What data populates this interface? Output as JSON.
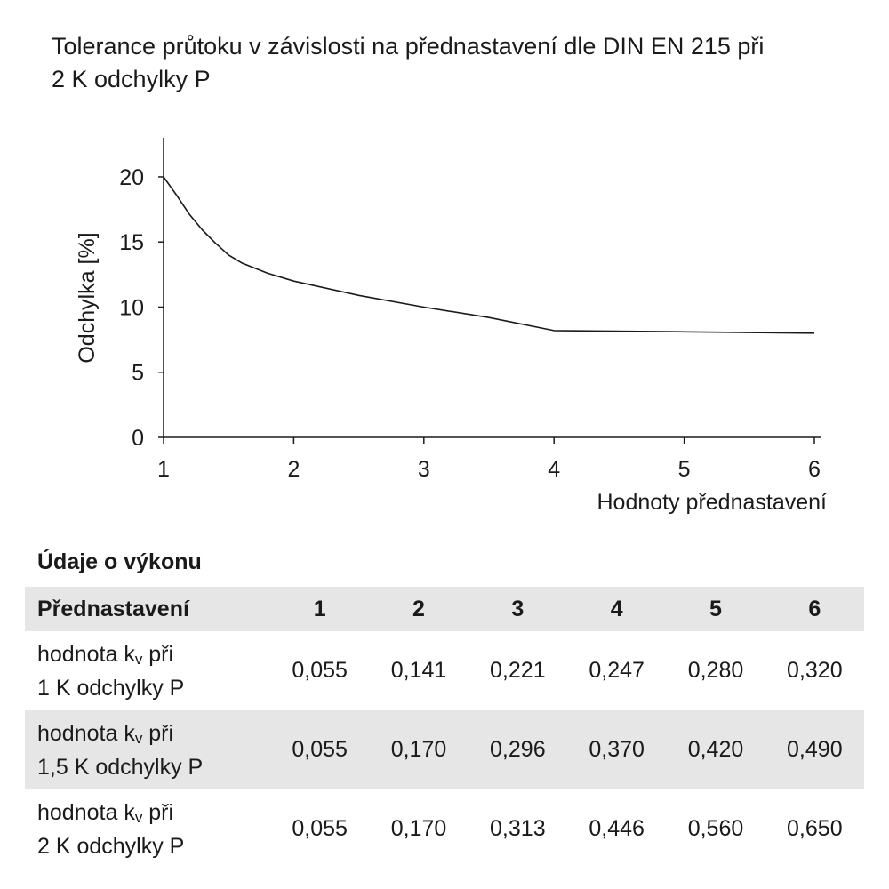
{
  "title": {
    "line1": "Tolerance průtoku v závislosti na přednastavení dle DIN EN 215 při",
    "line2": "2 K odchylky P"
  },
  "chart_data": {
    "type": "line",
    "xlabel": "Hodnoty přednastavení",
    "ylabel": "Odchylka [%]",
    "xlim": [
      1,
      6
    ],
    "ylim": [
      0,
      23
    ],
    "xticks": [
      1,
      2,
      3,
      4,
      5,
      6
    ],
    "yticks": [
      0,
      5,
      10,
      15,
      20
    ],
    "grid": false,
    "series": [
      {
        "x": [
          1.0,
          1.1,
          1.2,
          1.3,
          1.4,
          1.5,
          1.6,
          1.8,
          2.0,
          2.5,
          3.0,
          3.5,
          4.0,
          5.0,
          6.0
        ],
        "y": [
          20.0,
          18.6,
          17.1,
          15.9,
          14.9,
          14.0,
          13.4,
          12.6,
          12.0,
          10.9,
          10.0,
          9.2,
          8.2,
          8.1,
          8.0
        ],
        "color": "#1a1a1a"
      }
    ]
  },
  "table": {
    "section_title": "Údaje o výkonu",
    "header_label": "Přednastavení",
    "columns": [
      "1",
      "2",
      "3",
      "4",
      "5",
      "6"
    ],
    "rows": [
      {
        "label_prefix": "hodnota k",
        "label_sub": "v",
        "label_suffix": " při",
        "label_line2": "1 K odchylky P",
        "values": [
          "0,055",
          "0,141",
          "0,221",
          "0,247",
          "0,280",
          "0,320"
        ]
      },
      {
        "label_prefix": "hodnota k",
        "label_sub": "v",
        "label_suffix": " při",
        "label_line2": "1,5 K odchylky P",
        "values": [
          "0,055",
          "0,170",
          "0,296",
          "0,370",
          "0,420",
          "0,490"
        ]
      },
      {
        "label_prefix": "hodnota k",
        "label_sub": "v",
        "label_suffix": " při",
        "label_line2": "2 K odchylky P",
        "values": [
          "0,055",
          "0,170",
          "0,313",
          "0,446",
          "0,560",
          "0,650"
        ]
      }
    ]
  },
  "colors": {
    "header_bg": "#e6e6e6",
    "ink": "#1a1a1a"
  }
}
